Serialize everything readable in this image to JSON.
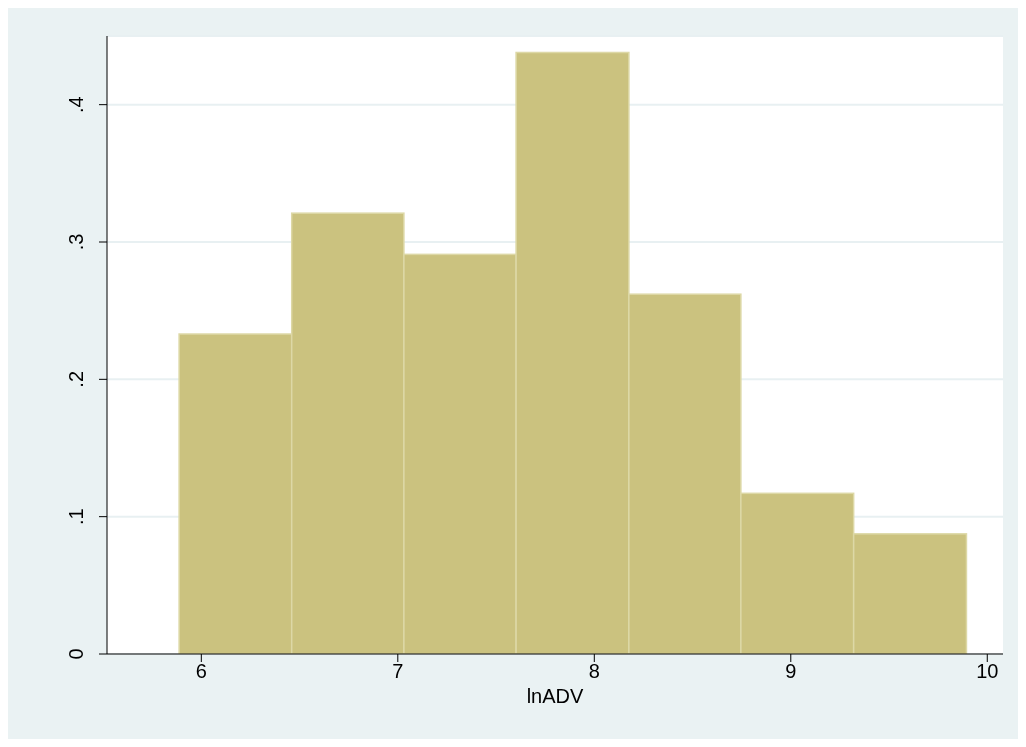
{
  "chart_data": {
    "type": "histogram",
    "xlabel": "lnADV",
    "bins": [
      5.887,
      6.46,
      7.031,
      7.602,
      8.176,
      8.746,
      9.32,
      9.894
    ],
    "values": [
      0.233,
      0.321,
      0.291,
      0.438,
      0.262,
      0.117,
      0.0875
    ],
    "color": "#cbc27f",
    "xlim": [
      5.52,
      10.08
    ],
    "xticks": [
      6,
      7,
      8,
      9,
      10
    ],
    "ylim": [
      0,
      0.45
    ],
    "yticks": [
      {
        "value": 0,
        "label": "0"
      },
      {
        "value": 0.1,
        "label": ".1"
      },
      {
        "value": 0.2,
        "label": ".2"
      },
      {
        "value": 0.3,
        "label": ".3"
      },
      {
        "value": 0.4,
        "label": ".4"
      }
    ],
    "grid": "y"
  }
}
